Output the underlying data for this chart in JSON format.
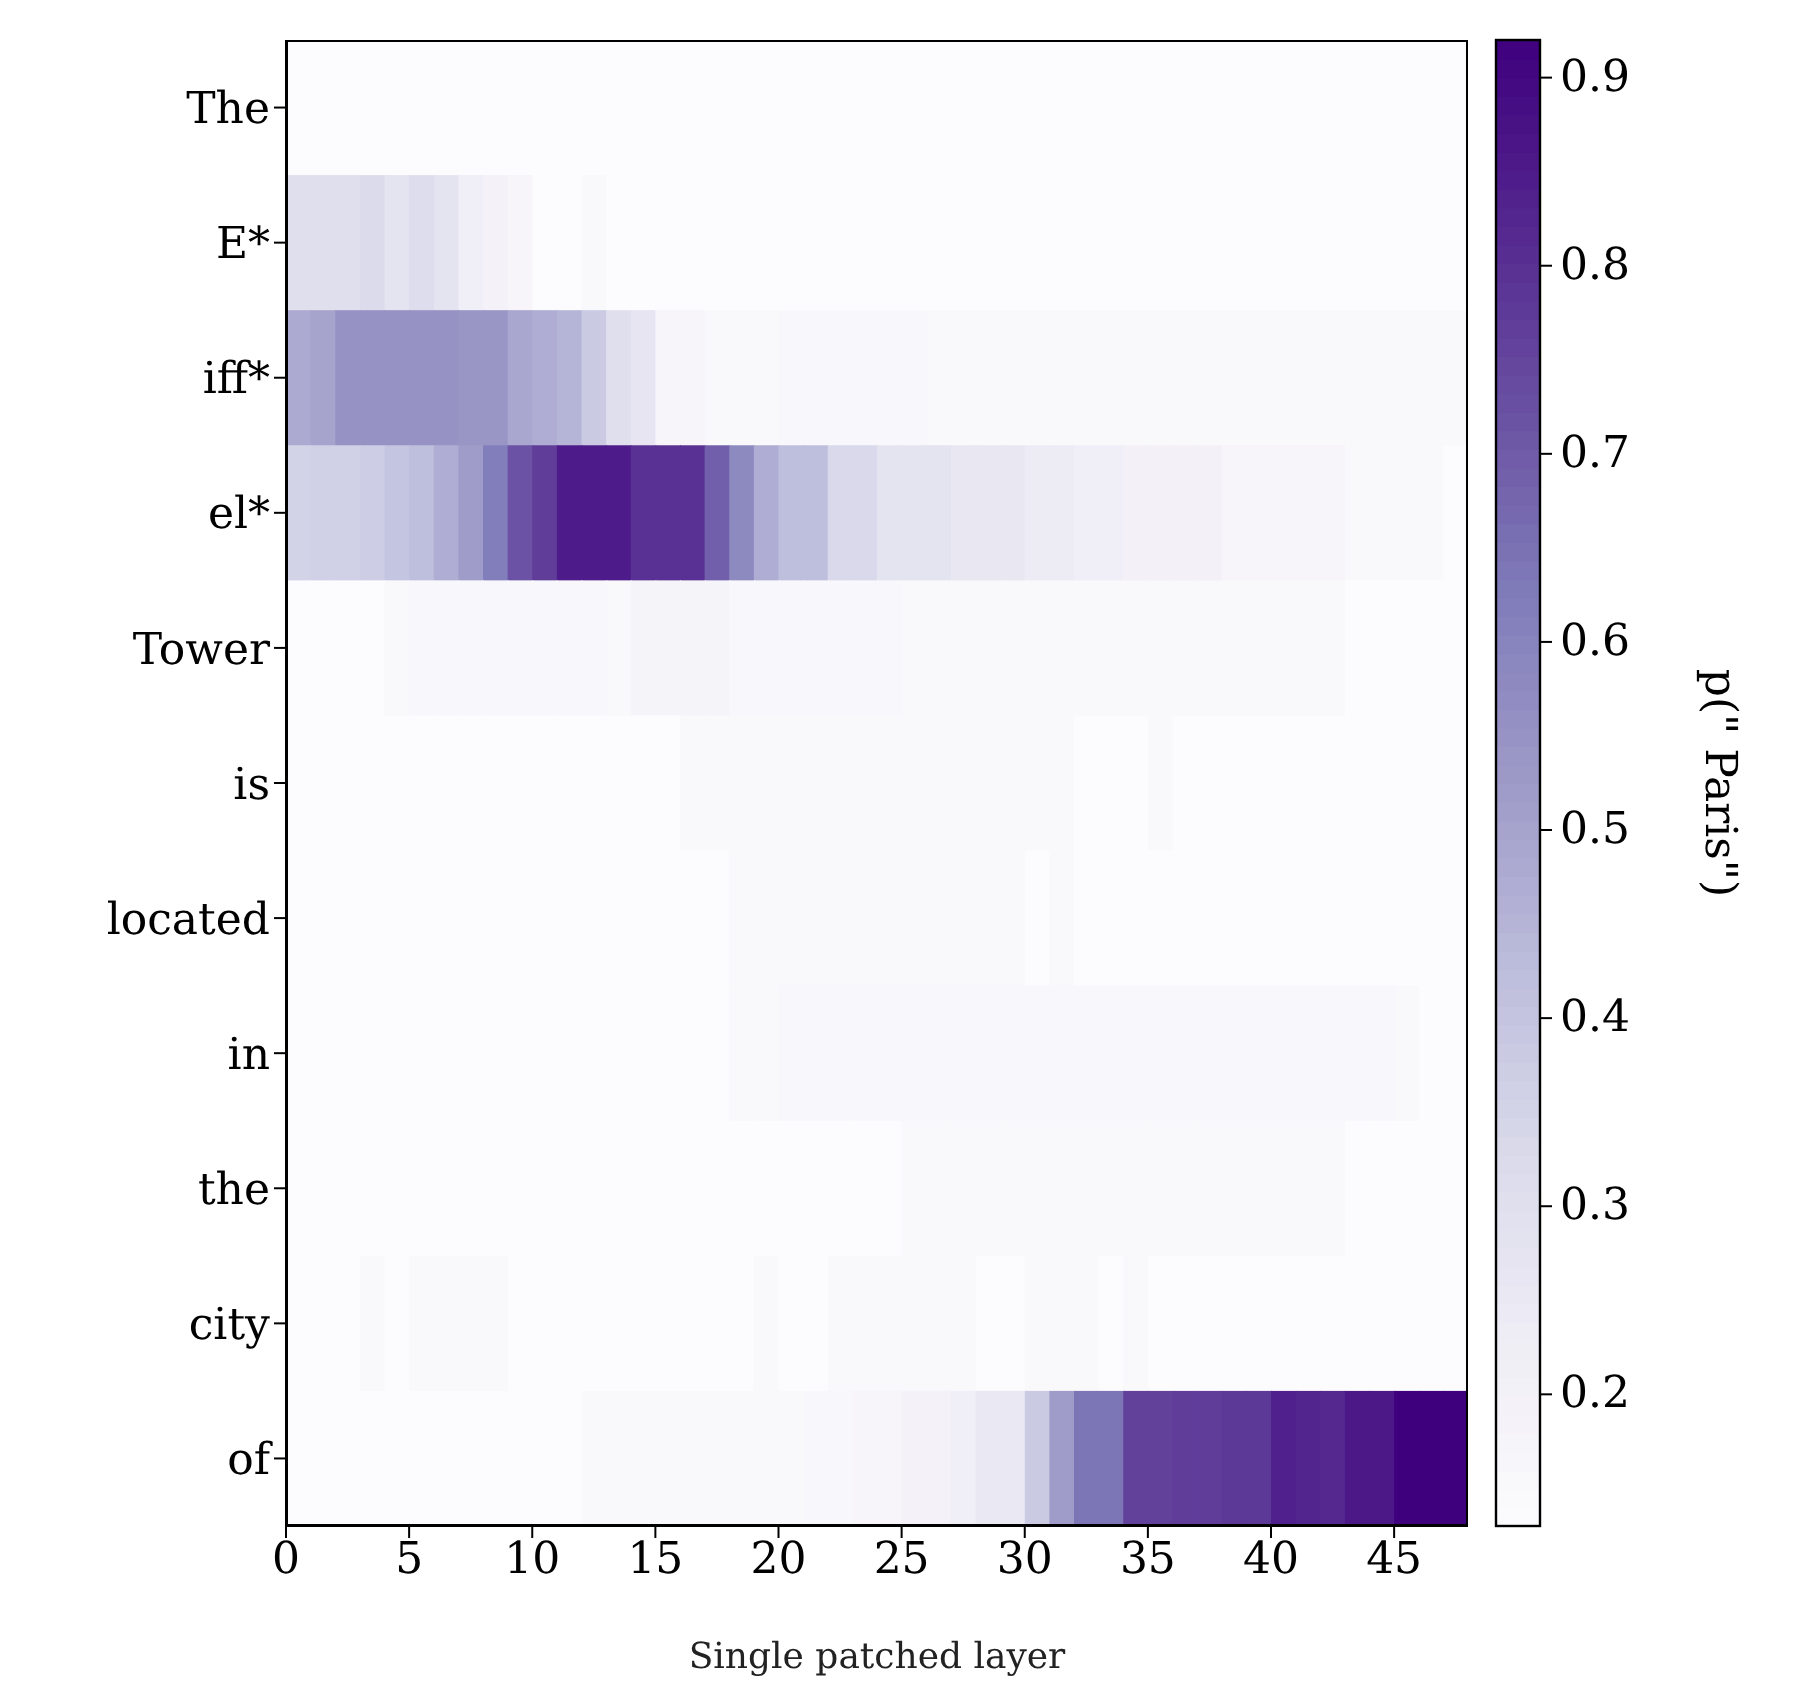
{
  "chart_data": {
    "type": "heatmap",
    "xlabel": "Single patched layer",
    "clabel": "p(\" Paris\")",
    "x": [
      0.5,
      1.5,
      2.5,
      3.5,
      4.5,
      5.5,
      6.5,
      7.5,
      8.5,
      9.5,
      10.5,
      11.5,
      12.5,
      13.5,
      14.5,
      15.5,
      16.5,
      17.5,
      18.5,
      19.5,
      20.5,
      21.5,
      22.5,
      23.5,
      24.5,
      25.5,
      26.5,
      27.5,
      28.5,
      29.5,
      30.5,
      31.5,
      32.5,
      33.5,
      34.5,
      35.5,
      36.5,
      37.5,
      38.5,
      39.5,
      40.5,
      41.5,
      42.5,
      43.5,
      44.5,
      45.5,
      46.5,
      47.5
    ],
    "xlim": [
      0,
      48
    ],
    "xticks": [
      0,
      5,
      10,
      15,
      20,
      25,
      30,
      35,
      40,
      45
    ],
    "y_categories": [
      "The",
      "E*",
      "iff*",
      "el*",
      "Tower",
      "is",
      "located",
      "in",
      "the",
      "city",
      "of"
    ],
    "clim": [
      0.13,
      0.92
    ],
    "cticks": [
      0.2,
      0.3,
      0.4,
      0.5,
      0.6,
      0.7,
      0.8,
      0.9
    ],
    "cells": [
      [
        0.13,
        0.13,
        0.13,
        0.13,
        0.13,
        0.13,
        0.13,
        0.13,
        0.13,
        0.13,
        0.13,
        0.13,
        0.13,
        0.13,
        0.13,
        0.13,
        0.13,
        0.13,
        0.13,
        0.13,
        0.13,
        0.13,
        0.13,
        0.13,
        0.13,
        0.13,
        0.13,
        0.13,
        0.13,
        0.13,
        0.13,
        0.13,
        0.13,
        0.13,
        0.13,
        0.13,
        0.13,
        0.13,
        0.13,
        0.13,
        0.13,
        0.13,
        0.13,
        0.13,
        0.13,
        0.13,
        0.13,
        0.13
      ],
      [
        0.3,
        0.3,
        0.3,
        0.32,
        0.28,
        0.31,
        0.28,
        0.22,
        0.19,
        0.17,
        0.13,
        0.13,
        0.15,
        0.13,
        0.13,
        0.13,
        0.13,
        0.13,
        0.13,
        0.13,
        0.13,
        0.13,
        0.13,
        0.13,
        0.13,
        0.13,
        0.13,
        0.13,
        0.13,
        0.13,
        0.13,
        0.13,
        0.13,
        0.13,
        0.13,
        0.13,
        0.13,
        0.13,
        0.13,
        0.13,
        0.13,
        0.13,
        0.13,
        0.13,
        0.13,
        0.13,
        0.13,
        0.13
      ],
      [
        0.48,
        0.5,
        0.55,
        0.55,
        0.55,
        0.55,
        0.55,
        0.54,
        0.54,
        0.49,
        0.47,
        0.45,
        0.38,
        0.3,
        0.27,
        0.17,
        0.17,
        0.15,
        0.15,
        0.15,
        0.16,
        0.16,
        0.16,
        0.16,
        0.16,
        0.16,
        0.15,
        0.15,
        0.15,
        0.15,
        0.15,
        0.15,
        0.15,
        0.15,
        0.15,
        0.15,
        0.15,
        0.15,
        0.15,
        0.15,
        0.15,
        0.15,
        0.15,
        0.15,
        0.15,
        0.15,
        0.15,
        0.15
      ],
      [
        0.35,
        0.36,
        0.36,
        0.37,
        0.4,
        0.42,
        0.47,
        0.52,
        0.62,
        0.72,
        0.77,
        0.85,
        0.85,
        0.85,
        0.8,
        0.8,
        0.8,
        0.69,
        0.58,
        0.47,
        0.42,
        0.42,
        0.33,
        0.33,
        0.28,
        0.28,
        0.28,
        0.26,
        0.26,
        0.26,
        0.24,
        0.24,
        0.22,
        0.22,
        0.2,
        0.2,
        0.2,
        0.2,
        0.17,
        0.17,
        0.17,
        0.17,
        0.17,
        0.15,
        0.15,
        0.15,
        0.15,
        0.13
      ],
      [
        0.13,
        0.13,
        0.13,
        0.13,
        0.15,
        0.16,
        0.16,
        0.16,
        0.16,
        0.16,
        0.16,
        0.16,
        0.16,
        0.15,
        0.18,
        0.18,
        0.18,
        0.18,
        0.16,
        0.16,
        0.16,
        0.16,
        0.16,
        0.16,
        0.16,
        0.15,
        0.15,
        0.15,
        0.15,
        0.15,
        0.15,
        0.15,
        0.15,
        0.15,
        0.15,
        0.15,
        0.15,
        0.15,
        0.15,
        0.15,
        0.15,
        0.15,
        0.15,
        0.13,
        0.13,
        0.13,
        0.13,
        0.13
      ],
      [
        0.13,
        0.13,
        0.13,
        0.13,
        0.13,
        0.13,
        0.13,
        0.13,
        0.13,
        0.13,
        0.13,
        0.13,
        0.13,
        0.13,
        0.13,
        0.13,
        0.15,
        0.15,
        0.15,
        0.15,
        0.15,
        0.15,
        0.15,
        0.15,
        0.15,
        0.15,
        0.15,
        0.15,
        0.15,
        0.15,
        0.15,
        0.15,
        0.13,
        0.13,
        0.13,
        0.15,
        0.13,
        0.13,
        0.13,
        0.13,
        0.13,
        0.13,
        0.13,
        0.13,
        0.13,
        0.13,
        0.13,
        0.13
      ],
      [
        0.13,
        0.13,
        0.13,
        0.13,
        0.13,
        0.13,
        0.13,
        0.13,
        0.13,
        0.13,
        0.13,
        0.13,
        0.13,
        0.13,
        0.13,
        0.13,
        0.13,
        0.13,
        0.15,
        0.15,
        0.15,
        0.15,
        0.15,
        0.15,
        0.15,
        0.15,
        0.15,
        0.15,
        0.15,
        0.15,
        0.13,
        0.15,
        0.13,
        0.13,
        0.13,
        0.13,
        0.13,
        0.13,
        0.13,
        0.13,
        0.13,
        0.13,
        0.13,
        0.13,
        0.13,
        0.13,
        0.13,
        0.13
      ],
      [
        0.13,
        0.13,
        0.13,
        0.13,
        0.13,
        0.13,
        0.13,
        0.13,
        0.13,
        0.13,
        0.13,
        0.13,
        0.13,
        0.13,
        0.13,
        0.13,
        0.13,
        0.13,
        0.15,
        0.15,
        0.16,
        0.16,
        0.16,
        0.16,
        0.16,
        0.16,
        0.16,
        0.16,
        0.16,
        0.16,
        0.16,
        0.16,
        0.16,
        0.16,
        0.16,
        0.16,
        0.16,
        0.16,
        0.16,
        0.16,
        0.16,
        0.16,
        0.16,
        0.16,
        0.16,
        0.15,
        0.13,
        0.13
      ],
      [
        0.13,
        0.13,
        0.13,
        0.13,
        0.13,
        0.13,
        0.13,
        0.13,
        0.13,
        0.13,
        0.13,
        0.13,
        0.13,
        0.13,
        0.13,
        0.13,
        0.13,
        0.13,
        0.13,
        0.13,
        0.13,
        0.13,
        0.13,
        0.13,
        0.13,
        0.15,
        0.15,
        0.15,
        0.15,
        0.15,
        0.15,
        0.15,
        0.15,
        0.15,
        0.15,
        0.15,
        0.15,
        0.15,
        0.15,
        0.15,
        0.15,
        0.15,
        0.15,
        0.13,
        0.13,
        0.13,
        0.13,
        0.13
      ],
      [
        0.13,
        0.13,
        0.13,
        0.15,
        0.13,
        0.15,
        0.15,
        0.15,
        0.15,
        0.13,
        0.13,
        0.13,
        0.13,
        0.13,
        0.13,
        0.13,
        0.13,
        0.13,
        0.13,
        0.15,
        0.13,
        0.13,
        0.15,
        0.15,
        0.15,
        0.15,
        0.15,
        0.15,
        0.13,
        0.13,
        0.15,
        0.15,
        0.15,
        0.13,
        0.15,
        0.13,
        0.13,
        0.13,
        0.13,
        0.13,
        0.13,
        0.13,
        0.13,
        0.13,
        0.13,
        0.13,
        0.13,
        0.13
      ],
      [
        0.13,
        0.13,
        0.13,
        0.13,
        0.13,
        0.13,
        0.13,
        0.13,
        0.13,
        0.13,
        0.13,
        0.13,
        0.15,
        0.15,
        0.15,
        0.15,
        0.15,
        0.15,
        0.15,
        0.15,
        0.15,
        0.16,
        0.16,
        0.17,
        0.17,
        0.19,
        0.19,
        0.22,
        0.25,
        0.25,
        0.38,
        0.52,
        0.64,
        0.64,
        0.76,
        0.76,
        0.77,
        0.77,
        0.78,
        0.78,
        0.84,
        0.83,
        0.82,
        0.86,
        0.86,
        0.92,
        0.92,
        0.92
      ]
    ]
  }
}
